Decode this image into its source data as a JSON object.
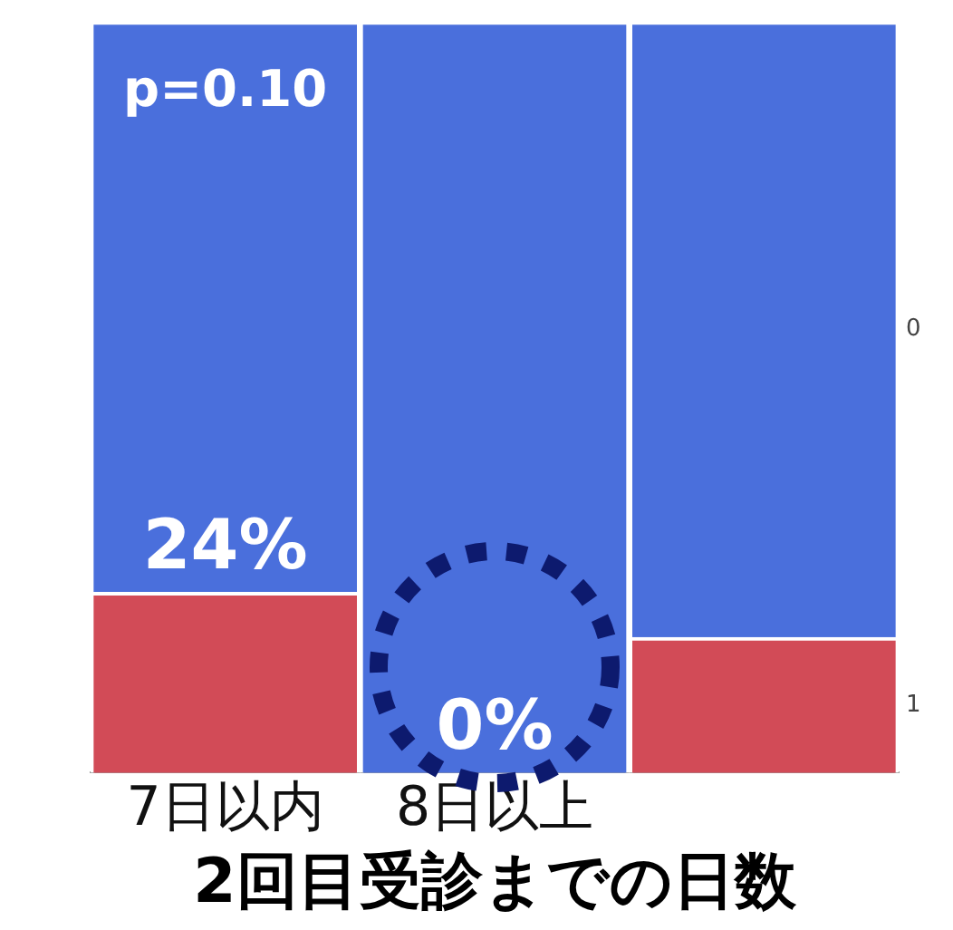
{
  "chart_data": {
    "type": "bar",
    "stacked": true,
    "xlabel": "2回目受診までの日数",
    "categories": [
      "7日以内",
      "8日以上",
      null
    ],
    "series": [
      {
        "name": "1",
        "color": "#d24b57",
        "values": [
          24,
          0,
          18
        ],
        "value_labels": [
          "24%",
          "0%",
          null
        ]
      },
      {
        "name": "0",
        "color": "#4a6fdc",
        "values": [
          76,
          100,
          82
        ]
      }
    ],
    "grid": false,
    "legend": false,
    "annotations": [
      "p=0.10"
    ]
  }
}
